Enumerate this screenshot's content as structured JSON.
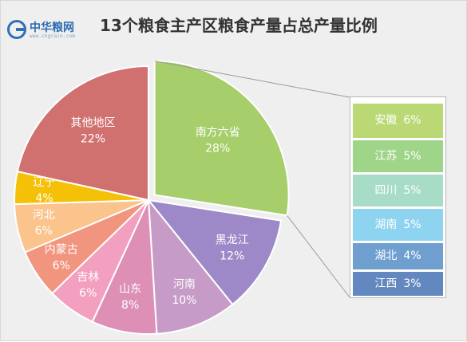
{
  "header": {
    "logo_name": "中华粮网",
    "logo_url": "www.cngrain.com",
    "title": "13个粮食主产区粮食产量占总产量比例"
  },
  "chart_data": {
    "type": "pie",
    "title": "13个粮食主产区粮食产量占总产量比例",
    "slices": [
      {
        "label": "南方六省",
        "value": 28,
        "color": "#a6ce6a"
      },
      {
        "label": "黑龙江",
        "value": 12,
        "color": "#9d88c8"
      },
      {
        "label": "河南",
        "value": 10,
        "color": "#c79bc8"
      },
      {
        "label": "山东",
        "value": 8,
        "color": "#dd8fb6"
      },
      {
        "label": "吉林",
        "value": 6,
        "color": "#f3a0c0"
      },
      {
        "label": "内蒙古",
        "value": 6,
        "color": "#f2957f"
      },
      {
        "label": "河北",
        "value": 6,
        "color": "#fbc48c"
      },
      {
        "label": "辽宁",
        "value": 4,
        "color": "#f5c108"
      },
      {
        "label": "其他地区",
        "value": 22,
        "color": "#d07170"
      }
    ],
    "exploded_slice": "南方六省",
    "breakdown": [
      {
        "label": "安徽",
        "value": 6,
        "color": "#bad974"
      },
      {
        "label": "江苏",
        "value": 5,
        "color": "#9fd589"
      },
      {
        "label": "四川",
        "value": 5,
        "color": "#a7dcc6"
      },
      {
        "label": "湖南",
        "value": 5,
        "color": "#8ed3ef"
      },
      {
        "label": "湖北",
        "value": 4,
        "color": "#6f9fcf"
      },
      {
        "label": "江西",
        "value": 3,
        "color": "#6388bf"
      }
    ],
    "value_suffix": "%"
  }
}
